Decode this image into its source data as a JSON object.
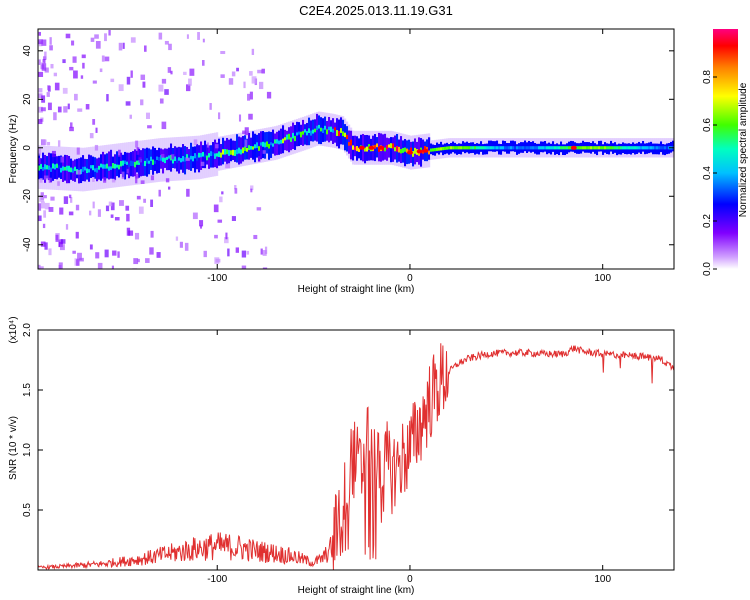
{
  "title": "C2E4.2025.013.11.19.G31",
  "chart_data": [
    {
      "type": "heatmap",
      "xlabel": "Height of straight line (km)",
      "ylabel": "Frequency (Hz)",
      "xlim": [
        -193,
        137
      ],
      "ylim": [
        -50,
        49
      ],
      "xticks": [
        -100,
        0,
        100
      ],
      "yticks": [
        -40,
        -20,
        0,
        20,
        40
      ],
      "ridge": {
        "x": [
          -193,
          -170,
          -150,
          -130,
          -110,
          -90,
          -70,
          -55,
          -48,
          -40,
          -35,
          -30,
          -20,
          -10,
          0,
          10,
          20,
          40,
          60,
          80,
          100,
          120,
          137
        ],
        "frequency": [
          -8,
          -9,
          -7,
          -5,
          -4,
          -1,
          2,
          6,
          8,
          7,
          6,
          0,
          0,
          0,
          -2,
          -1,
          0,
          0,
          0,
          0,
          0,
          0,
          0
        ]
      },
      "colorbar": {
        "label": "Normalized spectral amplitude",
        "ticks": [
          0.0,
          0.2,
          0.4,
          0.6,
          0.8
        ],
        "tick_labels": [
          "0.0",
          "0.2",
          "0.4",
          "0.6",
          "0.8"
        ],
        "colors": [
          "#ffffff",
          "#c080ff",
          "#8000ff",
          "#0000ff",
          "#00c0ff",
          "#00ff80",
          "#40ff00",
          "#ffff00",
          "#ff8000",
          "#ff0000",
          "#ff0080"
        ]
      }
    },
    {
      "type": "line",
      "xlabel": "Height of straight line (km)",
      "ylabel": "SNR (10 * v/v)",
      "multiplier": "(x10⁴)",
      "xlim": [
        -193,
        137
      ],
      "ylim": [
        0,
        2.0
      ],
      "xticks": [
        -100,
        0,
        100
      ],
      "yticks": [
        0.5,
        1.0,
        1.5,
        2.0
      ],
      "series": [
        {
          "color": "#e03030",
          "x": [
            -193,
            -180,
            -160,
            -140,
            -120,
            -110,
            -100,
            -90,
            -80,
            -70,
            -60,
            -50,
            -45,
            -40,
            -35,
            -30,
            -25,
            -22,
            -20,
            -18,
            -15,
            -12,
            -10,
            -5,
            0,
            5,
            10,
            15,
            20,
            25,
            30,
            40,
            50,
            60,
            70,
            80,
            85,
            90,
            100,
            110,
            120,
            130,
            137
          ],
          "y": [
            0.02,
            0.03,
            0.05,
            0.09,
            0.15,
            0.18,
            0.2,
            0.19,
            0.16,
            0.14,
            0.11,
            0.06,
            0.1,
            0.2,
            0.6,
            0.95,
            0.8,
            1.3,
            1.1,
            1.0,
            0.7,
            0.9,
            0.8,
            0.9,
            1.0,
            1.2,
            1.4,
            1.55,
            1.65,
            1.72,
            1.76,
            1.8,
            1.81,
            1.81,
            1.8,
            1.8,
            1.85,
            1.82,
            1.8,
            1.79,
            1.78,
            1.76,
            1.68
          ]
        }
      ]
    }
  ]
}
